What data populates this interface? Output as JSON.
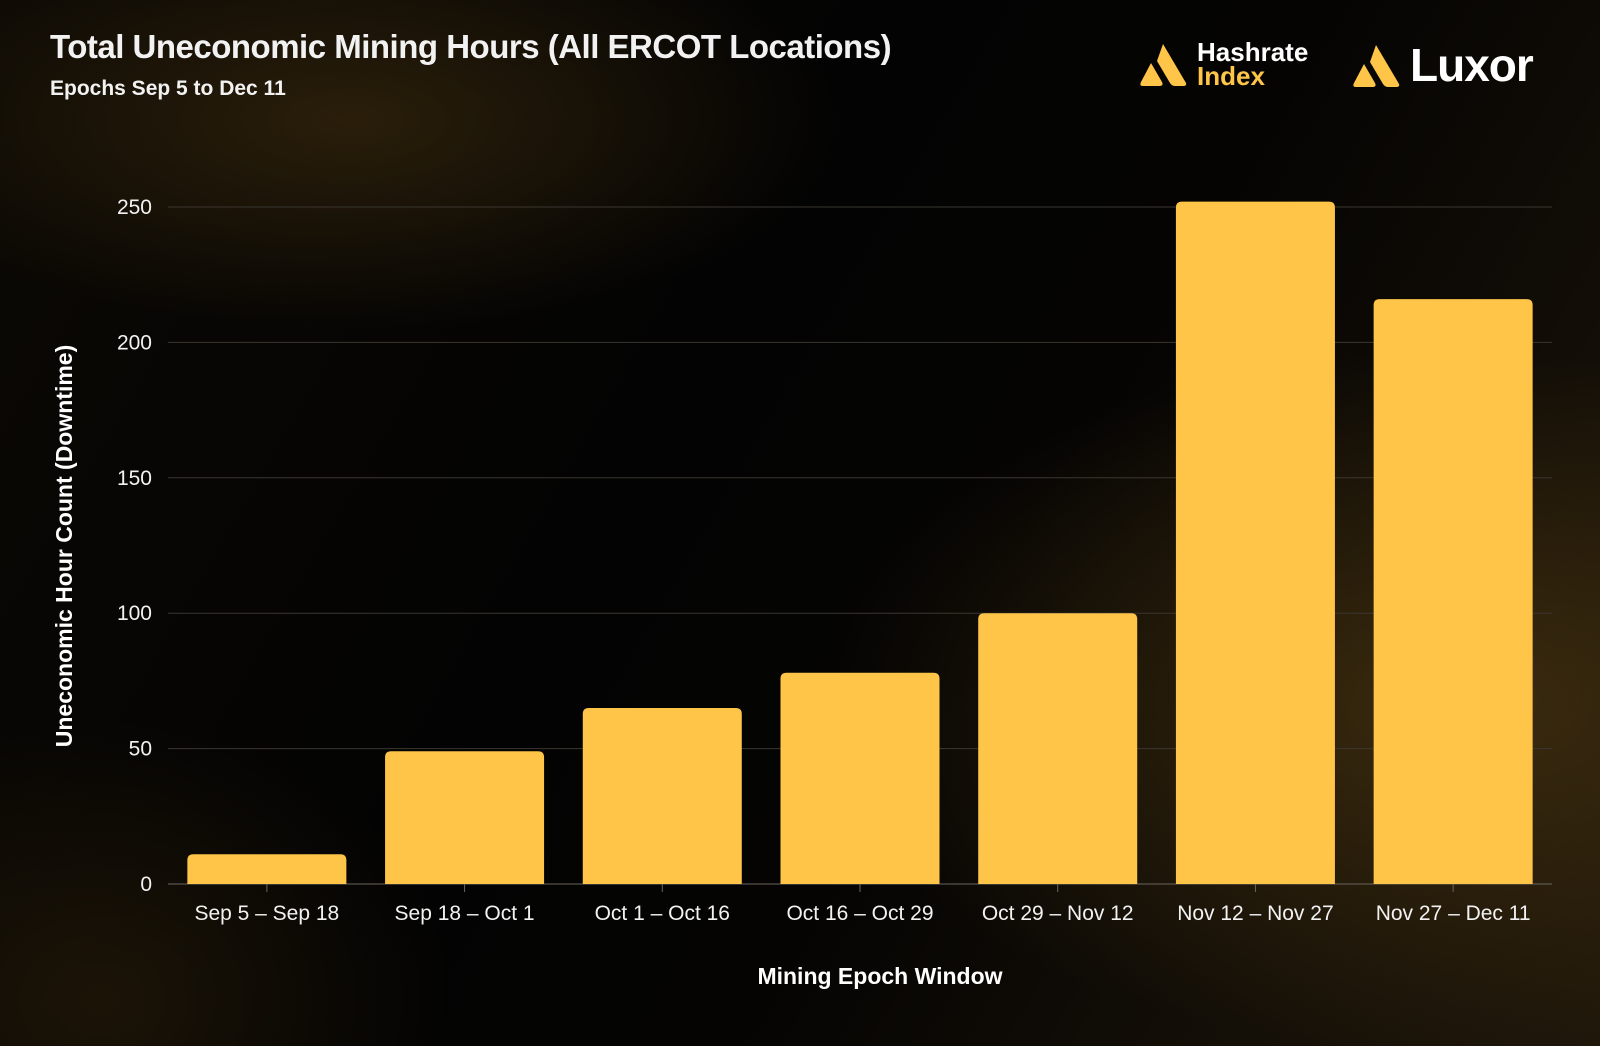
{
  "header": {
    "title": "Total Uneconomic Mining Hours (All ERCOT Locations)",
    "subtitle": "Epochs Sep 5 to Dec 11"
  },
  "logos": {
    "hashrate_line1": "Hashrate",
    "hashrate_line2": "Index",
    "luxor": "Luxor"
  },
  "colors": {
    "bar": "#ffc548",
    "accent": "#ffc548",
    "grid": "#3a3630"
  },
  "chart_data": {
    "type": "bar",
    "title": "Total Uneconomic Mining Hours (All ERCOT Locations)",
    "subtitle": "Epochs Sep 5 to Dec 11",
    "xlabel": "Mining Epoch Window",
    "ylabel": "Uneconomic Hour Count (Downtime)",
    "categories": [
      "Sep 5 – Sep 18",
      "Sep 18 – Oct 1",
      "Oct 1 – Oct 16",
      "Oct 16 – Oct 29",
      "Oct 29 – Nov 12",
      "Nov 12 – Nov 27",
      "Nov 27 – Dec 11"
    ],
    "values": [
      11,
      49,
      65,
      78,
      100,
      252,
      216
    ],
    "ylim": [
      0,
      250
    ],
    "yticks": [
      0,
      50,
      100,
      150,
      200,
      250
    ],
    "grid": true,
    "legend": "none"
  }
}
